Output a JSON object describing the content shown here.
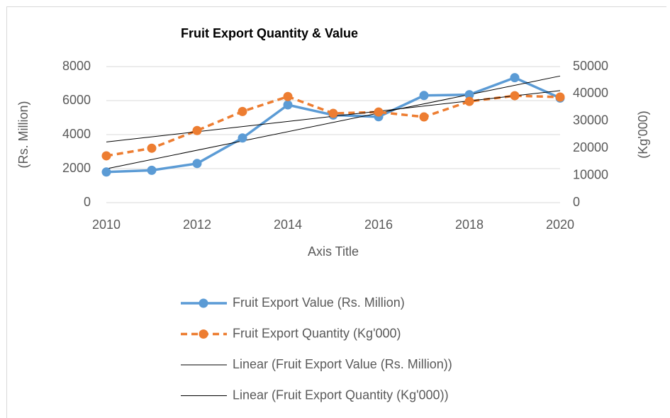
{
  "chart_data": {
    "type": "line",
    "title": "Fruit Export Quantity & Value",
    "x": [
      2010,
      2011,
      2012,
      2013,
      2014,
      2015,
      2016,
      2017,
      2018,
      2019,
      2020
    ],
    "xlim": [
      2010,
      2020
    ],
    "xticks": [
      2010,
      2012,
      2014,
      2016,
      2018,
      2020
    ],
    "x_label": "Axis Title",
    "y_label": "(Rs. Million)",
    "y2_label": "(Kg'000)",
    "ylim": [
      0,
      8000
    ],
    "yticks": [
      0,
      2000,
      4000,
      6000,
      8000
    ],
    "y2lim": [
      0,
      50000
    ],
    "y2ticks": [
      0,
      10000,
      20000,
      30000,
      40000,
      50000
    ],
    "grid": true,
    "series": [
      {
        "name": "Fruit Export Value (Rs. Million)",
        "color": "#5b9bd5",
        "dash": false,
        "values": [
          1800,
          1900,
          2300,
          3800,
          5750,
          5150,
          5050,
          6300,
          6350,
          7350,
          6150
        ]
      },
      {
        "name": "Fruit Export Quantity (Kg'000)",
        "color": "#ed7d31",
        "dash": true,
        "axis": "y2",
        "values": [
          17200,
          20000,
          26500,
          33500,
          39000,
          32800,
          33300,
          31500,
          37200,
          39300,
          38800
        ]
      }
    ],
    "trendlines": [
      {
        "name": "Linear (Fruit Export Value (Rs. Million))",
        "color": "#000000"
      },
      {
        "name": "Linear (Fruit Export Quantity (Kg'000))",
        "color": "#000000"
      }
    ]
  }
}
